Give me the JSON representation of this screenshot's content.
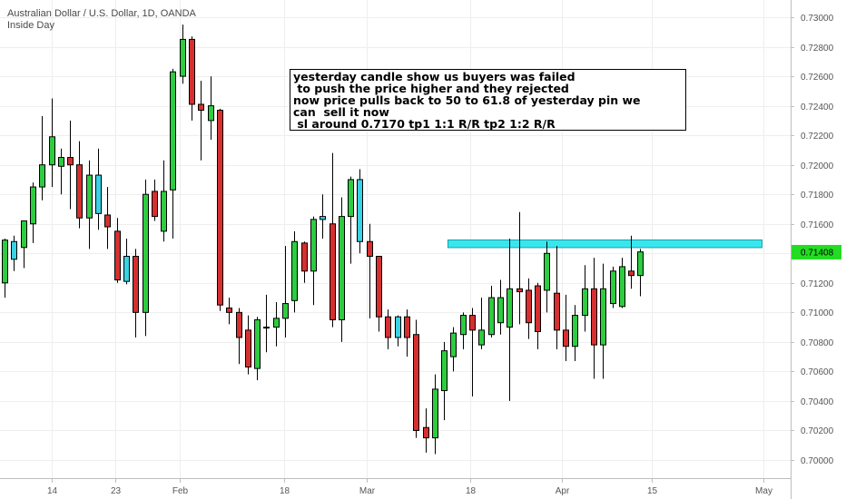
{
  "header": {
    "symbol_line": "Australian Dollar / U.S. Dollar, 1D, OANDA",
    "indicator_label": "Inside Day"
  },
  "annotation": {
    "lines": [
      "yesterday candle show us buyers was failed",
      " to push the price higher and they rejected",
      "now price pulls back to 50 to 61.8 of yesterday pin we",
      "can  sell it now",
      " sl around 0.7170 tp1 1:1 R/R tp2 1:2 R/R"
    ]
  },
  "colors": {
    "up": "#2ecc40",
    "down": "#d62f2f",
    "inside_day": "#39d2e4",
    "zone": "#39e6ee",
    "last_price_bg": "#22dd22",
    "grid": "#eeeeee"
  },
  "chart_data": {
    "type": "candlestick",
    "title": "Australian Dollar / U.S. Dollar, 1D, OANDA",
    "ylim": [
      0.6995,
      0.7312
    ],
    "y_ticks": [
      "0.70000",
      "0.70200",
      "0.70400",
      "0.70600",
      "0.70800",
      "0.71000",
      "0.71200",
      "0.71400",
      "0.71600",
      "0.71800",
      "0.72000",
      "0.72200",
      "0.72400",
      "0.72600",
      "0.72800",
      "0.73000"
    ],
    "x_ticks": [
      "14",
      "23",
      "Feb",
      "18",
      "Mar",
      "18",
      "Apr",
      "15",
      "May"
    ],
    "last_price_label": "0.71408",
    "last_price": 0.71408,
    "zone": {
      "low": 0.71439,
      "high": 0.71491
    },
    "candles": [
      {
        "o": 0.712,
        "h": 0.715,
        "l": 0.711,
        "c": 0.7149,
        "inside": false
      },
      {
        "o": 0.7136,
        "h": 0.7152,
        "l": 0.7128,
        "c": 0.7148,
        "inside": true
      },
      {
        "o": 0.7144,
        "h": 0.7162,
        "l": 0.713,
        "c": 0.7162,
        "inside": false
      },
      {
        "o": 0.716,
        "h": 0.7188,
        "l": 0.7147,
        "c": 0.7185,
        "inside": false
      },
      {
        "o": 0.7185,
        "h": 0.7233,
        "l": 0.7176,
        "c": 0.72,
        "inside": false
      },
      {
        "o": 0.72,
        "h": 0.7245,
        "l": 0.7185,
        "c": 0.7219,
        "inside": false
      },
      {
        "o": 0.7199,
        "h": 0.7211,
        "l": 0.718,
        "c": 0.7205,
        "inside": false
      },
      {
        "o": 0.7205,
        "h": 0.723,
        "l": 0.717,
        "c": 0.72,
        "inside": false
      },
      {
        "o": 0.72,
        "h": 0.7216,
        "l": 0.7157,
        "c": 0.7164,
        "inside": false
      },
      {
        "o": 0.7164,
        "h": 0.7203,
        "l": 0.7143,
        "c": 0.7193,
        "inside": false
      },
      {
        "o": 0.7193,
        "h": 0.7211,
        "l": 0.7156,
        "c": 0.7167,
        "inside": true
      },
      {
        "o": 0.7166,
        "h": 0.7185,
        "l": 0.7143,
        "c": 0.7158,
        "inside": false
      },
      {
        "o": 0.7155,
        "h": 0.7164,
        "l": 0.712,
        "c": 0.7122,
        "inside": false
      },
      {
        "o": 0.7121,
        "h": 0.715,
        "l": 0.7119,
        "c": 0.7138,
        "inside": true
      },
      {
        "o": 0.7138,
        "h": 0.7143,
        "l": 0.7083,
        "c": 0.71,
        "inside": false
      },
      {
        "o": 0.71,
        "h": 0.719,
        "l": 0.7084,
        "c": 0.718,
        "inside": false
      },
      {
        "o": 0.7182,
        "h": 0.719,
        "l": 0.7162,
        "c": 0.7165,
        "inside": false
      },
      {
        "o": 0.7155,
        "h": 0.7203,
        "l": 0.7148,
        "c": 0.7182,
        "inside": false
      },
      {
        "o": 0.7183,
        "h": 0.7265,
        "l": 0.715,
        "c": 0.7263,
        "inside": false
      },
      {
        "o": 0.726,
        "h": 0.7295,
        "l": 0.7255,
        "c": 0.7285,
        "inside": false
      },
      {
        "o": 0.7285,
        "h": 0.7287,
        "l": 0.723,
        "c": 0.7241,
        "inside": false
      },
      {
        "o": 0.7241,
        "h": 0.7257,
        "l": 0.7203,
        "c": 0.7237,
        "inside": false
      },
      {
        "o": 0.723,
        "h": 0.726,
        "l": 0.7217,
        "c": 0.724,
        "inside": false
      },
      {
        "o": 0.7237,
        "h": 0.7238,
        "l": 0.7101,
        "c": 0.7105,
        "inside": false
      },
      {
        "o": 0.7103,
        "h": 0.711,
        "l": 0.7092,
        "c": 0.71,
        "inside": false
      },
      {
        "o": 0.71,
        "h": 0.7103,
        "l": 0.7065,
        "c": 0.7083,
        "inside": false
      },
      {
        "o": 0.7088,
        "h": 0.7098,
        "l": 0.7058,
        "c": 0.7063,
        "inside": false
      },
      {
        "o": 0.7062,
        "h": 0.7097,
        "l": 0.7054,
        "c": 0.7095,
        "inside": false
      },
      {
        "o": 0.709,
        "h": 0.7112,
        "l": 0.7073,
        "c": 0.709,
        "inside": false
      },
      {
        "o": 0.709,
        "h": 0.7107,
        "l": 0.7077,
        "c": 0.7096,
        "inside": false
      },
      {
        "o": 0.7096,
        "h": 0.7145,
        "l": 0.7083,
        "c": 0.7106,
        "inside": false
      },
      {
        "o": 0.7108,
        "h": 0.7155,
        "l": 0.71,
        "c": 0.7148,
        "inside": false
      },
      {
        "o": 0.7147,
        "h": 0.7148,
        "l": 0.712,
        "c": 0.7128,
        "inside": false
      },
      {
        "o": 0.7128,
        "h": 0.7165,
        "l": 0.7105,
        "c": 0.7163,
        "inside": false
      },
      {
        "o": 0.7165,
        "h": 0.718,
        "l": 0.715,
        "c": 0.7163,
        "inside": true
      },
      {
        "o": 0.716,
        "h": 0.7208,
        "l": 0.709,
        "c": 0.7095,
        "inside": false
      },
      {
        "o": 0.7095,
        "h": 0.7178,
        "l": 0.708,
        "c": 0.7165,
        "inside": false
      },
      {
        "o": 0.7165,
        "h": 0.7192,
        "l": 0.7133,
        "c": 0.719,
        "inside": false
      },
      {
        "o": 0.719,
        "h": 0.7197,
        "l": 0.714,
        "c": 0.7148,
        "inside": true
      },
      {
        "o": 0.7148,
        "h": 0.716,
        "l": 0.7096,
        "c": 0.7138,
        "inside": false
      },
      {
        "o": 0.7138,
        "h": 0.7138,
        "l": 0.7087,
        "c": 0.7097,
        "inside": false
      },
      {
        "o": 0.7097,
        "h": 0.7102,
        "l": 0.7075,
        "c": 0.7083,
        "inside": false
      },
      {
        "o": 0.7083,
        "h": 0.7098,
        "l": 0.7077,
        "c": 0.7097,
        "inside": true
      },
      {
        "o": 0.7097,
        "h": 0.7102,
        "l": 0.707,
        "c": 0.7083,
        "inside": false
      },
      {
        "o": 0.7085,
        "h": 0.7095,
        "l": 0.7015,
        "c": 0.702,
        "inside": false
      },
      {
        "o": 0.7022,
        "h": 0.7035,
        "l": 0.7005,
        "c": 0.7015,
        "inside": false
      },
      {
        "o": 0.7015,
        "h": 0.7058,
        "l": 0.7004,
        "c": 0.7048,
        "inside": false
      },
      {
        "o": 0.7047,
        "h": 0.708,
        "l": 0.7027,
        "c": 0.7074,
        "inside": false
      },
      {
        "o": 0.707,
        "h": 0.709,
        "l": 0.706,
        "c": 0.7086,
        "inside": false
      },
      {
        "o": 0.7085,
        "h": 0.71,
        "l": 0.7075,
        "c": 0.7098,
        "inside": false
      },
      {
        "o": 0.7098,
        "h": 0.7103,
        "l": 0.7043,
        "c": 0.7088,
        "inside": false
      },
      {
        "o": 0.7078,
        "h": 0.711,
        "l": 0.7075,
        "c": 0.7088,
        "inside": false
      },
      {
        "o": 0.7085,
        "h": 0.7118,
        "l": 0.7083,
        "c": 0.711,
        "inside": false
      },
      {
        "o": 0.7093,
        "h": 0.7122,
        "l": 0.7085,
        "c": 0.711,
        "inside": false
      },
      {
        "o": 0.709,
        "h": 0.715,
        "l": 0.704,
        "c": 0.7116,
        "inside": false
      },
      {
        "o": 0.7116,
        "h": 0.7168,
        "l": 0.7092,
        "c": 0.7114,
        "inside": false
      },
      {
        "o": 0.7115,
        "h": 0.7123,
        "l": 0.7082,
        "c": 0.7093,
        "inside": false
      },
      {
        "o": 0.7118,
        "h": 0.712,
        "l": 0.7075,
        "c": 0.7087,
        "inside": false
      },
      {
        "o": 0.7115,
        "h": 0.7148,
        "l": 0.71,
        "c": 0.714,
        "inside": false
      },
      {
        "o": 0.7113,
        "h": 0.7145,
        "l": 0.7075,
        "c": 0.7088,
        "inside": false
      },
      {
        "o": 0.7088,
        "h": 0.7112,
        "l": 0.7067,
        "c": 0.7077,
        "inside": false
      },
      {
        "o": 0.7077,
        "h": 0.7105,
        "l": 0.7067,
        "c": 0.7098,
        "inside": false
      },
      {
        "o": 0.7098,
        "h": 0.7132,
        "l": 0.7087,
        "c": 0.7116,
        "inside": false
      },
      {
        "o": 0.7116,
        "h": 0.7137,
        "l": 0.7055,
        "c": 0.7078,
        "inside": false
      },
      {
        "o": 0.7078,
        "h": 0.7133,
        "l": 0.7055,
        "c": 0.7116,
        "inside": false
      },
      {
        "o": 0.7106,
        "h": 0.7131,
        "l": 0.7103,
        "c": 0.7128,
        "inside": false
      },
      {
        "o": 0.7104,
        "h": 0.7137,
        "l": 0.7103,
        "c": 0.7131,
        "inside": false
      },
      {
        "o": 0.7128,
        "h": 0.7152,
        "l": 0.7116,
        "c": 0.7125,
        "inside": false
      },
      {
        "o": 0.7125,
        "h": 0.7143,
        "l": 0.7111,
        "c": 0.7141,
        "inside": false
      }
    ]
  }
}
